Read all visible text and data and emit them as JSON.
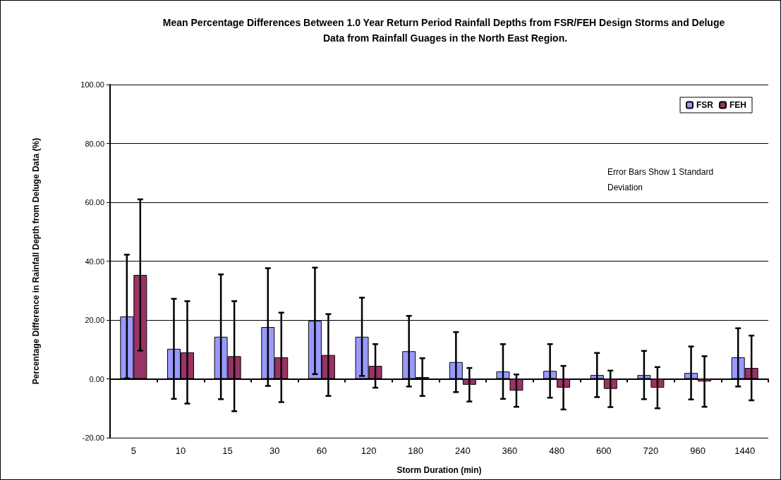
{
  "chart_data": {
    "type": "bar",
    "title": "Mean Percentage Differences Between 1.0 Year Return Period Rainfall Depths from FSR/FEH Design Storms and Deluge Data from Rainfall Guages in the North East Region.",
    "xlabel": "Storm Duration (min)",
    "ylabel": "Percentage Difference in Rainfall Depth from Deluge Data (%)",
    "categories": [
      "5",
      "10",
      "15",
      "30",
      "60",
      "120",
      "180",
      "240",
      "360",
      "480",
      "600",
      "720",
      "960",
      "1440"
    ],
    "series": [
      {
        "name": "FSR",
        "color": "#9999ff",
        "values": [
          21.2,
          10.2,
          14.3,
          17.6,
          19.7,
          14.3,
          9.4,
          5.7,
          2.5,
          2.7,
          1.3,
          1.3,
          2.0,
          7.3
        ],
        "errors": [
          21,
          17,
          21.2,
          20,
          18.1,
          13.3,
          12,
          10.2,
          9.3,
          9.1,
          7.5,
          8.2,
          9.0,
          9.9
        ]
      },
      {
        "name": "FEH",
        "color": "#993366",
        "values": [
          35.3,
          9.0,
          7.7,
          7.3,
          8.1,
          4.4,
          0.6,
          -2.0,
          -4.0,
          -3.0,
          -3.4,
          -3.0,
          -0.9,
          3.7
        ],
        "errors": [
          25.7,
          17.4,
          18.7,
          15.2,
          13.9,
          7.4,
          6.4,
          5.7,
          5.5,
          7.4,
          6.2,
          7.0,
          8.6,
          11
        ]
      }
    ],
    "ylim": [
      -20,
      100
    ],
    "yticks": [
      {
        "value": -20,
        "label": "-20.00"
      },
      {
        "value": 0,
        "label": "0.00"
      },
      {
        "value": 20,
        "label": "20.00"
      },
      {
        "value": 40,
        "label": "40.00"
      },
      {
        "value": 60,
        "label": "60.00"
      },
      {
        "value": 80,
        "label": "80.00"
      },
      {
        "value": 100,
        "label": "100.00"
      }
    ],
    "grid": "y",
    "legend": "top right",
    "annotations": [
      "Error Bars Show 1 Standard Deviation"
    ]
  }
}
